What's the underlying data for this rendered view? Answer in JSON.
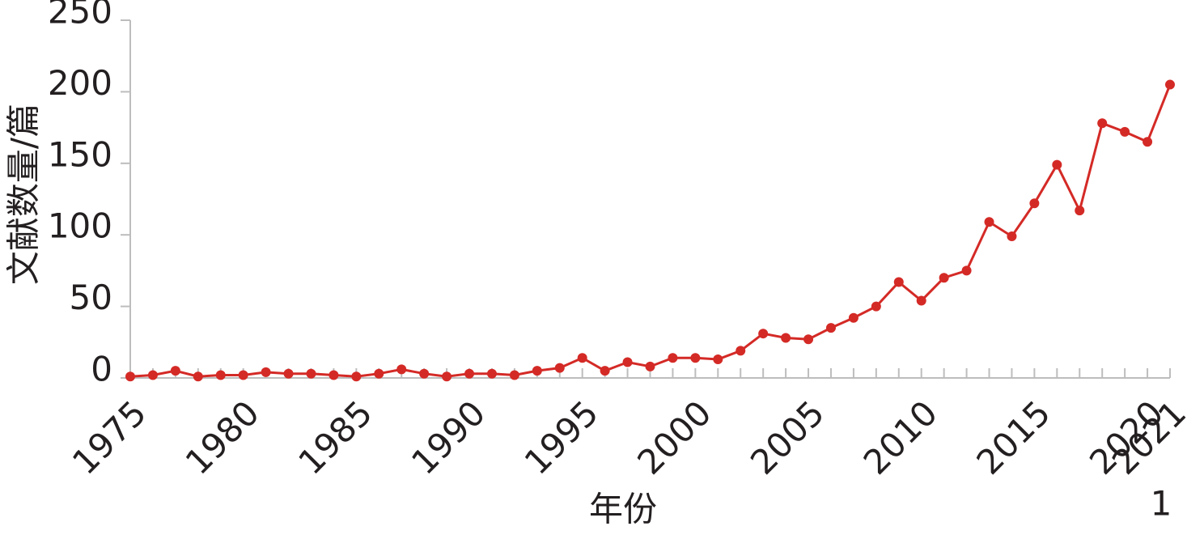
{
  "chart_data": {
    "type": "line",
    "x_label": "年份",
    "y_label": "文献数量/篇",
    "annotation": "1",
    "x": [
      1975,
      1976,
      1977,
      1978,
      1979,
      1980,
      1981,
      1982,
      1983,
      1984,
      1985,
      1986,
      1987,
      1988,
      1989,
      1990,
      1991,
      1992,
      1993,
      1994,
      1995,
      1996,
      1997,
      1998,
      1999,
      2000,
      2001,
      2002,
      2003,
      2004,
      2005,
      2006,
      2007,
      2008,
      2009,
      2010,
      2011,
      2012,
      2013,
      2014,
      2015,
      2016,
      2017,
      2018,
      2019,
      2020,
      2021
    ],
    "series": [
      {
        "name": "文献数量",
        "color": "#d42a26",
        "values": [
          1,
          2,
          5,
          1,
          2,
          2,
          4,
          3,
          3,
          2,
          1,
          3,
          6,
          3,
          1,
          3,
          3,
          2,
          5,
          7,
          14,
          5,
          11,
          8,
          14,
          14,
          13,
          19,
          31,
          28,
          27,
          35,
          42,
          50,
          67,
          54,
          70,
          75,
          109,
          99,
          122,
          149,
          117,
          178,
          172,
          165,
          205
        ]
      }
    ],
    "xlim": [
      1975,
      2021
    ],
    "xticks": [
      1975,
      1980,
      1985,
      1990,
      1995,
      2000,
      2005,
      2010,
      2015,
      2020,
      2021
    ],
    "ylim": [
      0,
      250
    ],
    "yticks": [
      0,
      50,
      100,
      150,
      200,
      250
    ],
    "grid": false
  }
}
